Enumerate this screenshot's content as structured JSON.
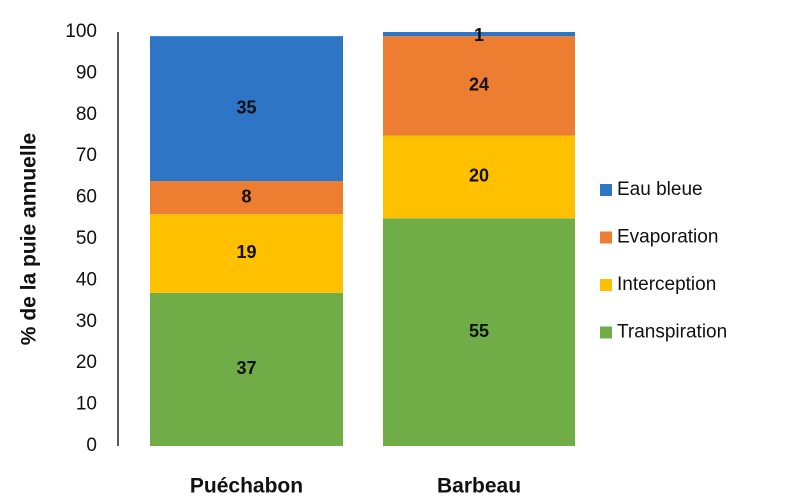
{
  "chart_data": {
    "type": "stacked_bar",
    "y_label": "% de la puie annuelle",
    "categories": [
      "Puéchabon",
      "Barbeau"
    ],
    "series": [
      {
        "name": "Transpiration",
        "color": "#70ad47",
        "values": [
          37,
          55
        ]
      },
      {
        "name": "Interception",
        "color": "#ffc000",
        "values": [
          19,
          20
        ]
      },
      {
        "name": "Evaporation",
        "color": "#ed7d31",
        "values": [
          8,
          24
        ]
      },
      {
        "name": "Eau bleue",
        "color": "#2e75c6",
        "values": [
          35,
          1
        ]
      }
    ],
    "ylim": [
      0,
      100
    ],
    "yticks": [
      0,
      10,
      20,
      30,
      40,
      50,
      60,
      70,
      80,
      90,
      100
    ],
    "grid": false,
    "legend": "right"
  }
}
